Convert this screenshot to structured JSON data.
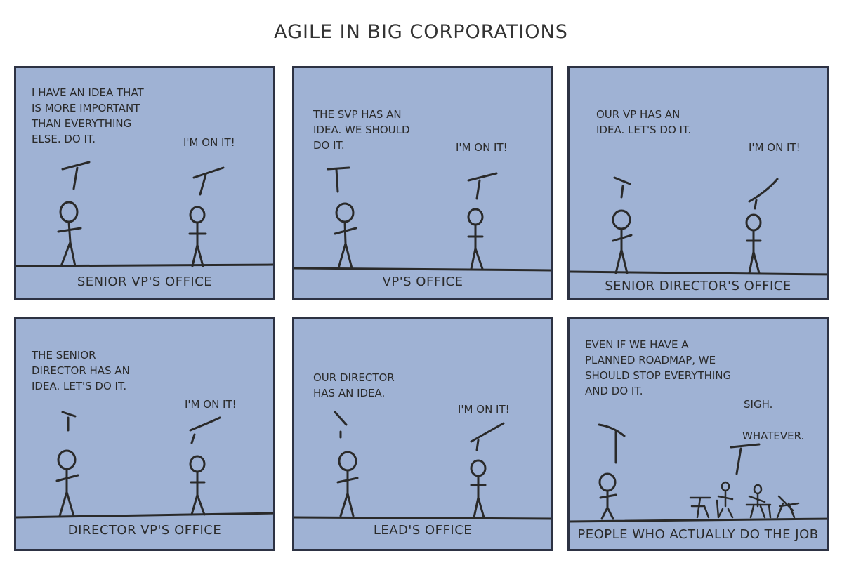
{
  "title": "AGILE IN BIG CORPORATIONS",
  "colors": {
    "panel_bg": "#9fb2d4",
    "border": "#2d3243",
    "ink": "#2a2a2a"
  },
  "panels": [
    {
      "speaker": "I HAVE AN IDEA THAT\nIS MORE IMPORTANT\nTHAN EVERYTHING\nELSE. DO IT.",
      "reply": "I'M ON IT!",
      "caption": "SENIOR VP'S OFFICE"
    },
    {
      "speaker": "THE SVP HAS AN\nIDEA. WE SHOULD\nDO IT.",
      "reply": "I'M ON IT!",
      "caption": "VP'S OFFICE"
    },
    {
      "speaker": "OUR VP HAS AN\nIDEA. LET'S DO IT.",
      "reply": "I'M ON IT!",
      "caption": "SENIOR DIRECTOR'S OFFICE"
    },
    {
      "speaker": "THE SENIOR\nDIRECTOR HAS AN\nIDEA. LET'S DO IT.",
      "reply": "I'M ON IT!",
      "caption": "DIRECTOR VP'S OFFICE"
    },
    {
      "speaker": "OUR DIRECTOR\nHAS AN IDEA.",
      "reply": "I'M ON IT!",
      "caption": "LEAD'S OFFICE"
    },
    {
      "speaker": "EVEN IF WE HAVE A\nPLANNED ROADMAP, WE\nSHOULD STOP EVERYTHING\nAND DO IT.",
      "reply": "SIGH.",
      "reply2": "WHATEVER.",
      "caption": "PEOPLE WHO ACTUALLY DO THE JOB"
    }
  ]
}
